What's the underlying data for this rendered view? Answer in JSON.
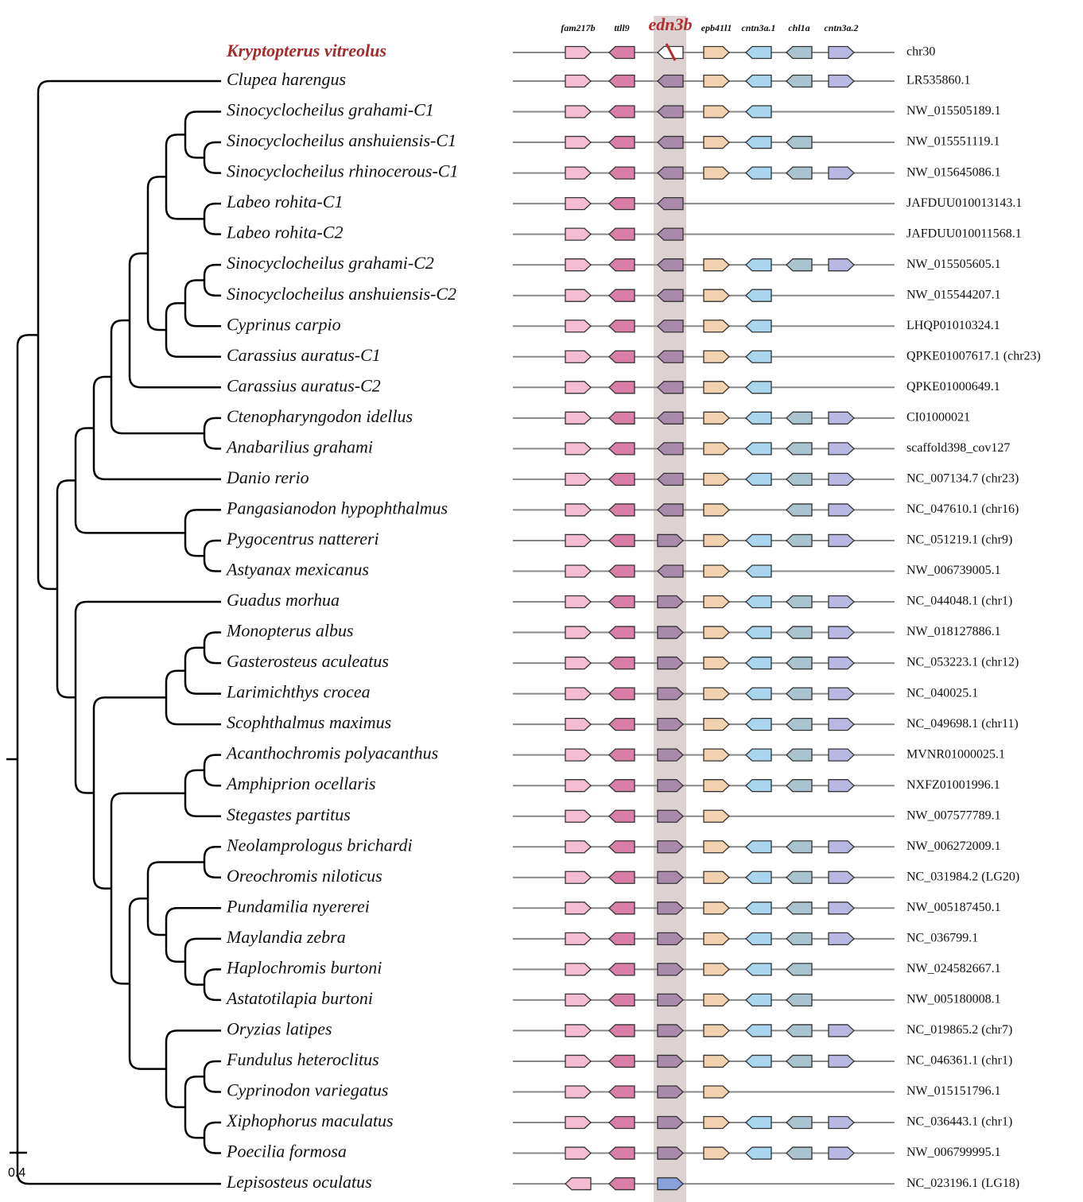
{
  "header": {
    "genes": [
      "fam217b",
      "ttll9",
      "edn3b",
      "epb41l1",
      "cntn3a.1",
      "chl1a",
      "cntn3a.2"
    ]
  },
  "scale_label": "0.4",
  "rows": [
    {
      "species": "Kryptopterus  vitreolus",
      "accession": "chr30"
    },
    {
      "species": "Clupea harengus",
      "accession": "LR535860.1"
    },
    {
      "species": "Sinocyclocheilus grahami-C1",
      "accession": "NW_015505189.1"
    },
    {
      "species": "Sinocyclocheilus anshuiensis-C1",
      "accession": "NW_015551119.1"
    },
    {
      "species": "Sinocyclocheilus rhinocerous-C1",
      "accession": "NW_015645086.1"
    },
    {
      "species": "Labeo rohita-C1",
      "accession": "JAFDUU010013143.1"
    },
    {
      "species": "Labeo rohita-C2",
      "accession": "JAFDUU010011568.1"
    },
    {
      "species": "Sinocyclocheilus grahami-C2",
      "accession": "NW_015505605.1"
    },
    {
      "species": "Sinocyclocheilus anshuiensis-C2",
      "accession": "NW_015544207.1"
    },
    {
      "species": "Cyprinus carpio",
      "accession": "LHQP01010324.1"
    },
    {
      "species": "Carassius auratus-C1",
      "accession": "QPKE01007617.1 (chr23)"
    },
    {
      "species": "Carassius auratus-C2",
      "accession": "QPKE01000649.1"
    },
    {
      "species": "Ctenopharyngodon idellus",
      "accession": "CI01000021"
    },
    {
      "species": "Anabarilius grahami",
      "accession": "scaffold398_cov127"
    },
    {
      "species": "Danio rerio",
      "accession": "NC_007134.7 (chr23)"
    },
    {
      "species": "Pangasianodon hypophthalmus",
      "accession": "NC_047610.1 (chr16)"
    },
    {
      "species": "Pygocentrus nattereri",
      "accession": "NC_051219.1 (chr9)"
    },
    {
      "species": "Astyanax mexicanus",
      "accession": "NW_006739005.1"
    },
    {
      "species": "Guadus morhua",
      "accession": "NC_044048.1 (chr1)"
    },
    {
      "species": "Monopterus albus",
      "accession": "NW_018127886.1"
    },
    {
      "species": "Gasterosteus aculeatus",
      "accession": "NC_053223.1 (chr12)"
    },
    {
      "species": "Larimichthys crocea",
      "accession": "NC_040025.1"
    },
    {
      "species": "Scophthalmus maximus",
      "accession": "NC_049698.1 (chr11)"
    },
    {
      "species": "Acanthochromis polyacanthus",
      "accession": "MVNR01000025.1"
    },
    {
      "species": "Amphiprion ocellaris",
      "accession": "NXFZ01001996.1"
    },
    {
      "species": "Stegastes partitus",
      "accession": "NW_007577789.1"
    },
    {
      "species": "Neolamprologus brichardi",
      "accession": "NW_006272009.1"
    },
    {
      "species": "Oreochromis niloticus",
      "accession": "NC_031984.2 (LG20)"
    },
    {
      "species": "Pundamilia nyererei",
      "accession": "NW_005187450.1"
    },
    {
      "species": "Maylandia zebra",
      "accession": "NC_036799.1"
    },
    {
      "species": "Haplochromis burtoni",
      "accession": "NW_024582667.1"
    },
    {
      "species": "Astatotilapia burtoni",
      "accession": "NW_005180008.1"
    },
    {
      "species": "Oryzias latipes",
      "accession": "NC_019865.2 (chr7)"
    },
    {
      "species": "Fundulus heteroclitus",
      "accession": "NC_046361.1  (chr1)"
    },
    {
      "species": "Cyprinodon variegatus",
      "accession": "NW_015151796.1"
    },
    {
      "species": "Xiphophorus maculatus",
      "accession": "NC_036443.1 (chr1)"
    },
    {
      "species": "Poecilia formosa",
      "accession": "NW_006799995.1"
    },
    {
      "species": "Lepisosteus oculatus",
      "accession": "NC_023196.1 (LG18)"
    }
  ]
}
